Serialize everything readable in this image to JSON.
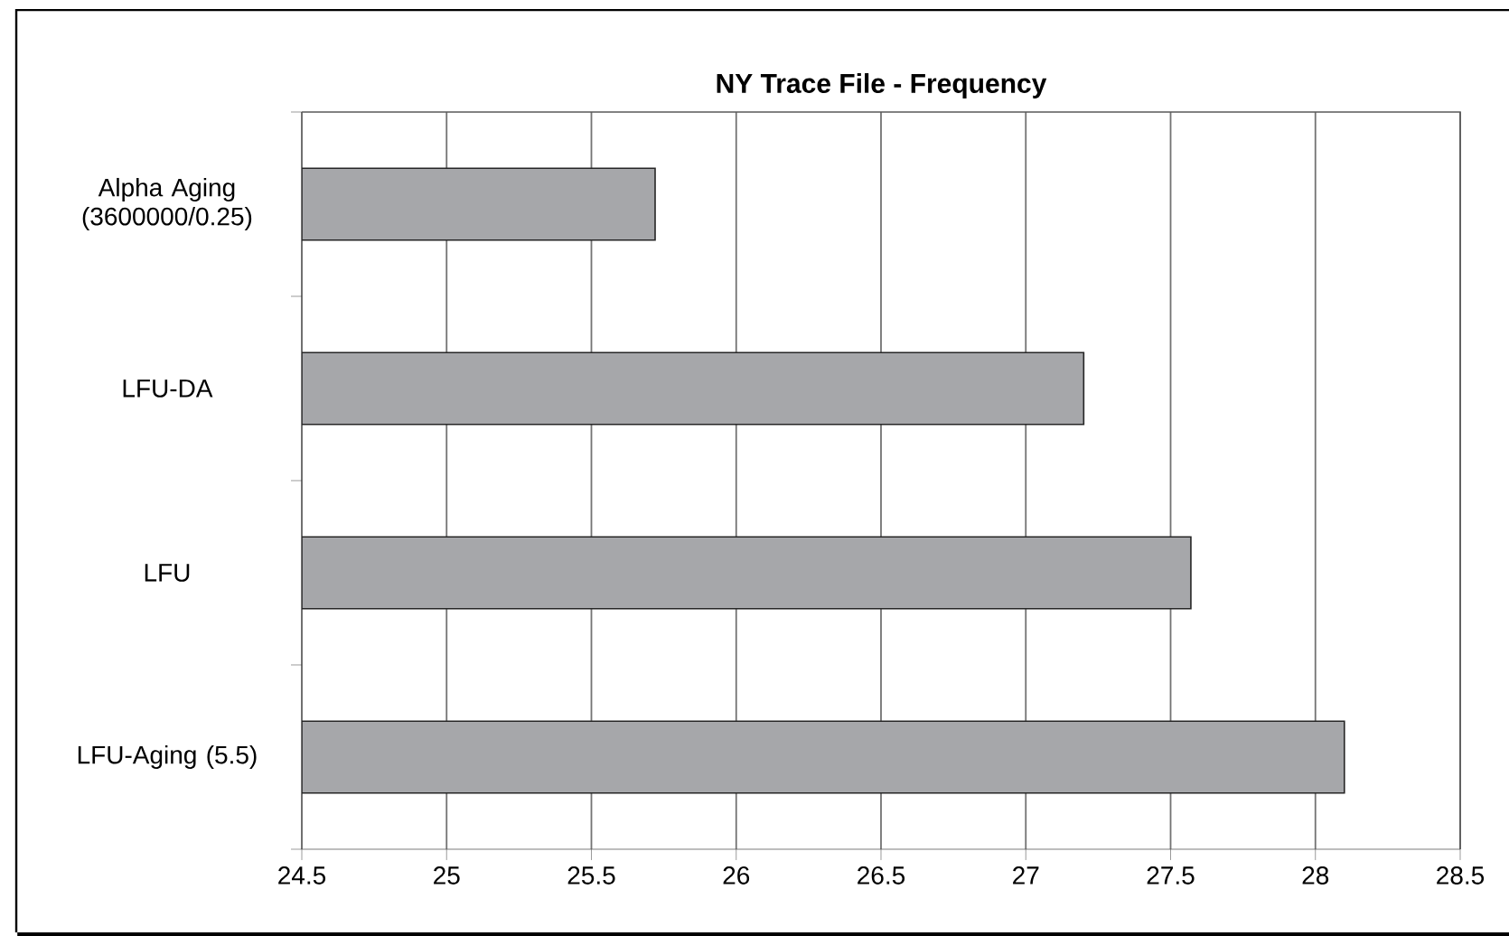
{
  "chart_data": {
    "type": "bar",
    "orientation": "horizontal",
    "title": "NY Trace File - Frequency",
    "categories": [
      "Alpha Aging (3600000/0.25)",
      "LFU-DA",
      "LFU",
      "LFU-Aging (5.5)"
    ],
    "values": [
      25.72,
      27.2,
      27.57,
      28.1
    ],
    "color": "#a6a7aa",
    "xlim": [
      24.5,
      28.5
    ],
    "xticks": [
      24.5,
      25,
      25.5,
      26,
      26.5,
      27,
      27.5,
      28,
      28.5
    ],
    "grid": "x"
  }
}
